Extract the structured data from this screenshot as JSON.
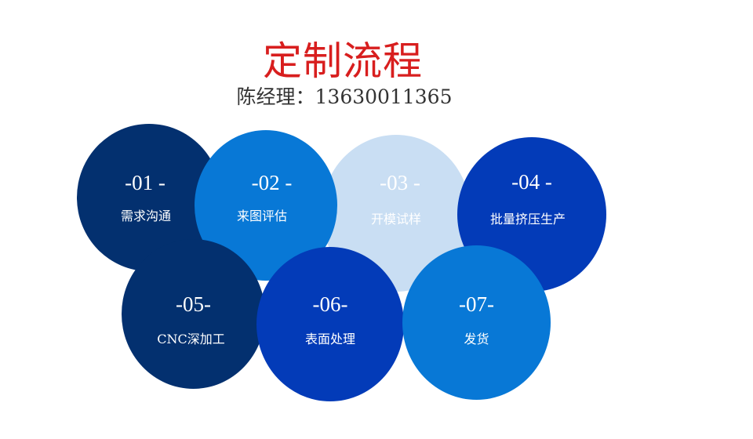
{
  "title": "定制流程",
  "contact": "陈经理：13630011365",
  "colors": {
    "navy": "#03306f",
    "sky": "#0878d6",
    "pale": "#c9def3",
    "royal": "#033bb8",
    "title": "#d81e1e"
  },
  "steps": [
    {
      "num": "-01 -",
      "label": "需求沟通"
    },
    {
      "num": "-02 -",
      "label": "来图评估"
    },
    {
      "num": "-03 -",
      "label": "开模试样"
    },
    {
      "num": "-04 -",
      "label": "批量挤压生产"
    },
    {
      "num": "-05-",
      "label": "CNC深加工"
    },
    {
      "num": "-06-",
      "label": "表面处理"
    },
    {
      "num": "-07-",
      "label": "发货"
    }
  ]
}
